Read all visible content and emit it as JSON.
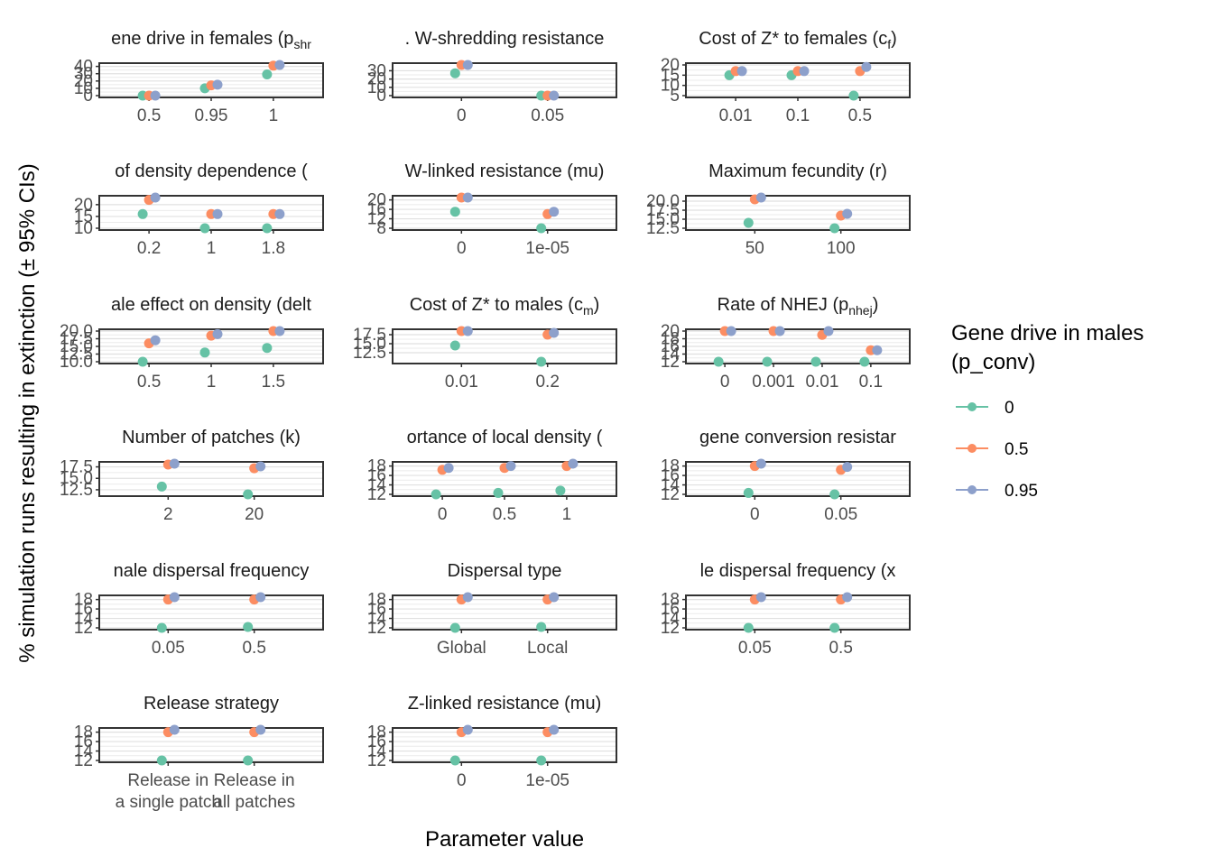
{
  "chart_data": {
    "type": "scatter",
    "xlabel": "Parameter value",
    "ylabel": "% simulation runs resulting in extinction (± 95% CIs)",
    "legend": {
      "title_lines": [
        "Gene drive in males",
        "(p_conv)"
      ],
      "position": "right",
      "entries": [
        {
          "label": "0",
          "color": "#66c2a5"
        },
        {
          "label": "0.5",
          "color": "#fc8d62"
        },
        {
          "label": "0.95",
          "color": "#8da0cb"
        }
      ]
    },
    "grid": true,
    "panels": [
      {
        "title": "ene drive in females (p",
        "title_sub": "shr",
        "categories": [
          "0.5",
          "0.95",
          "1"
        ],
        "yticks": [
          "0",
          "10",
          "20",
          "30",
          "40"
        ],
        "ylim": [
          0,
          42
        ],
        "series": [
          {
            "name": "0",
            "values": [
              0,
              10,
              29
            ]
          },
          {
            "name": "0.5",
            "values": [
              0,
              14,
              41
            ]
          },
          {
            "name": "0.95",
            "values": [
              0,
              15,
              42
            ]
          }
        ]
      },
      {
        "title": ". W-shredding resistance",
        "title_sub": "",
        "categories": [
          "0",
          "0.05"
        ],
        "yticks": [
          "0",
          "10",
          "20",
          "30"
        ],
        "ylim": [
          0,
          37
        ],
        "series": [
          {
            "name": "0",
            "values": [
              27,
              0
            ]
          },
          {
            "name": "0.5",
            "values": [
              37,
              0
            ]
          },
          {
            "name": "0.95",
            "values": [
              37,
              0
            ]
          }
        ]
      },
      {
        "title": "Cost of Z* to females (c",
        "title_sub": "f",
        "title_end": ")",
        "categories": [
          "0.01",
          "0.1",
          "0.5"
        ],
        "yticks": [
          "5",
          "10",
          "15",
          "20"
        ],
        "ylim": [
          5,
          20
        ],
        "series": [
          {
            "name": "0",
            "values": [
              15,
              15,
              5
            ]
          },
          {
            "name": "0.5",
            "values": [
              17,
              17,
              17
            ]
          },
          {
            "name": "0.95",
            "values": [
              17,
              17,
              19
            ]
          }
        ]
      },
      {
        "title": "of density dependence (",
        "title_sub": "",
        "categories": [
          "0.2",
          "1",
          "1.8"
        ],
        "yticks": [
          "10",
          "15",
          "20"
        ],
        "ylim": [
          10,
          23
        ],
        "series": [
          {
            "name": "0",
            "values": [
              16,
              10,
              10
            ]
          },
          {
            "name": "0.5",
            "values": [
              22,
              16,
              16
            ]
          },
          {
            "name": "0.95",
            "values": [
              23,
              16,
              16
            ]
          }
        ]
      },
      {
        "title": "W-linked resistance (mu)",
        "title_sub": "",
        "categories": [
          "0",
          "1e-05"
        ],
        "yticks": [
          "8",
          "12",
          "16",
          "20"
        ],
        "ylim": [
          8,
          21
        ],
        "series": [
          {
            "name": "0",
            "values": [
              15,
              8
            ]
          },
          {
            "name": "0.5",
            "values": [
              21,
              14
            ]
          },
          {
            "name": "0.95",
            "values": [
              21,
              15
            ]
          }
        ]
      },
      {
        "title": "Maximum fecundity (r)",
        "title_sub": "",
        "categories": [
          "50",
          "100"
        ],
        "yticks": [
          "12.5",
          "15.0",
          "17.5",
          "20.0"
        ],
        "ylim": [
          12.5,
          21
        ],
        "series": [
          {
            "name": "0",
            "values": [
              14,
              12.5
            ]
          },
          {
            "name": "0.5",
            "values": [
              20.5,
              16
            ]
          },
          {
            "name": "0.95",
            "values": [
              21,
              16.5
            ]
          }
        ]
      },
      {
        "title": "ale effect on density (delt",
        "title_sub": "",
        "categories": [
          "0.5",
          "1",
          "1.5"
        ],
        "yticks": [
          "10.0",
          "12.5",
          "15.0",
          "17.5",
          "20.0"
        ],
        "ylim": [
          10,
          20
        ],
        "series": [
          {
            "name": "0",
            "values": [
              10,
              13,
              14.5
            ]
          },
          {
            "name": "0.5",
            "values": [
              16,
              18.5,
              20
            ]
          },
          {
            "name": "0.95",
            "values": [
              17,
              19,
              20
            ]
          }
        ]
      },
      {
        "title": "Cost of Z* to males (c",
        "title_sub": "m",
        "title_end": ")",
        "categories": [
          "0.01",
          "0.2"
        ],
        "yticks": [
          "12.5",
          "15.0",
          "17.5"
        ],
        "ylim": [
          10,
          18.5
        ],
        "series": [
          {
            "name": "0",
            "values": [
              14.5,
              10
            ]
          },
          {
            "name": "0.5",
            "values": [
              18.5,
              17.5
            ]
          },
          {
            "name": "0.95",
            "values": [
              18.5,
              18
            ]
          }
        ]
      },
      {
        "title": "Rate of NHEJ (p",
        "title_sub": "nhej",
        "title_end": ")",
        "categories": [
          "0",
          "0.001",
          "0.01",
          "0.1"
        ],
        "yticks": [
          "12",
          "14",
          "16",
          "18",
          "20"
        ],
        "ylim": [
          12,
          20
        ],
        "series": [
          {
            "name": "0",
            "values": [
              12,
              12,
              12,
              12
            ]
          },
          {
            "name": "0.5",
            "values": [
              20,
              20,
              19,
              15
            ]
          },
          {
            "name": "0.95",
            "values": [
              20,
              20,
              20,
              15
            ]
          }
        ]
      },
      {
        "title": "Number of patches (k)",
        "title_sub": "",
        "categories": [
          "2",
          "20"
        ],
        "yticks": [
          "12.5",
          "15.0",
          "17.5"
        ],
        "ylim": [
          11.5,
          18.2
        ],
        "series": [
          {
            "name": "0",
            "values": [
              13.2,
              11.5
            ]
          },
          {
            "name": "0.5",
            "values": [
              18,
              17.2
            ]
          },
          {
            "name": "0.95",
            "values": [
              18.2,
              17.6
            ]
          }
        ]
      },
      {
        "title": "ortance of local density (",
        "title_sub": "",
        "categories": [
          "0",
          "0.5",
          "1"
        ],
        "yticks": [
          "12",
          "14",
          "16",
          "18"
        ],
        "ylim": [
          12,
          18.5
        ],
        "series": [
          {
            "name": "0",
            "values": [
              12,
              12.3,
              12.8
            ]
          },
          {
            "name": "0.5",
            "values": [
              17.2,
              17.6,
              18
            ]
          },
          {
            "name": "0.95",
            "values": [
              17.6,
              18,
              18.5
            ]
          }
        ]
      },
      {
        "title": "gene conversion resistar",
        "title_sub": "",
        "categories": [
          "0",
          "0.05"
        ],
        "yticks": [
          "12",
          "14",
          "16",
          "18"
        ],
        "ylim": [
          12,
          18.5
        ],
        "series": [
          {
            "name": "0",
            "values": [
              12.3,
              12
            ]
          },
          {
            "name": "0.5",
            "values": [
              18,
              17.2
            ]
          },
          {
            "name": "0.95",
            "values": [
              18.5,
              17.8
            ]
          }
        ]
      },
      {
        "title": "nale dispersal frequency",
        "title_sub": "",
        "categories": [
          "0.05",
          "0.5"
        ],
        "yticks": [
          "12",
          "14",
          "16",
          "18"
        ],
        "ylim": [
          12,
          18.5
        ],
        "series": [
          {
            "name": "0",
            "values": [
              12,
              12.2
            ]
          },
          {
            "name": "0.5",
            "values": [
              18,
              18
            ]
          },
          {
            "name": "0.95",
            "values": [
              18.5,
              18.5
            ]
          }
        ]
      },
      {
        "title": "Dispersal type",
        "title_sub": "",
        "categories": [
          "Global",
          "Local"
        ],
        "yticks": [
          "12",
          "14",
          "16",
          "18"
        ],
        "ylim": [
          12,
          18.5
        ],
        "series": [
          {
            "name": "0",
            "values": [
              12,
              12.2
            ]
          },
          {
            "name": "0.5",
            "values": [
              18,
              18
            ]
          },
          {
            "name": "0.95",
            "values": [
              18.5,
              18.5
            ]
          }
        ]
      },
      {
        "title": "le dispersal frequency (x",
        "title_sub": "",
        "categories": [
          "0.05",
          "0.5"
        ],
        "yticks": [
          "12",
          "14",
          "16",
          "18"
        ],
        "ylim": [
          12,
          18.5
        ],
        "series": [
          {
            "name": "0",
            "values": [
              12,
              12
            ]
          },
          {
            "name": "0.5",
            "values": [
              18,
              18
            ]
          },
          {
            "name": "0.95",
            "values": [
              18.5,
              18.5
            ]
          }
        ]
      },
      {
        "title": "Release strategy",
        "title_sub": "",
        "categories": [
          "Release in\na single patch",
          "Release in\nall patches"
        ],
        "yticks": [
          "12",
          "14",
          "16",
          "18"
        ],
        "ylim": [
          12,
          18.5
        ],
        "series": [
          {
            "name": "0",
            "values": [
              12,
              12
            ]
          },
          {
            "name": "0.5",
            "values": [
              18,
              18
            ]
          },
          {
            "name": "0.95",
            "values": [
              18.5,
              18.5
            ]
          }
        ]
      },
      {
        "title": "Z-linked resistance (mu)",
        "title_sub": "",
        "categories": [
          "0",
          "1e-05"
        ],
        "yticks": [
          "12",
          "14",
          "16",
          "18"
        ],
        "ylim": [
          12,
          18.5
        ],
        "series": [
          {
            "name": "0",
            "values": [
              12,
              12
            ]
          },
          {
            "name": "0.5",
            "values": [
              18,
              18
            ]
          },
          {
            "name": "0.95",
            "values": [
              18.5,
              18.5
            ]
          }
        ]
      }
    ]
  }
}
